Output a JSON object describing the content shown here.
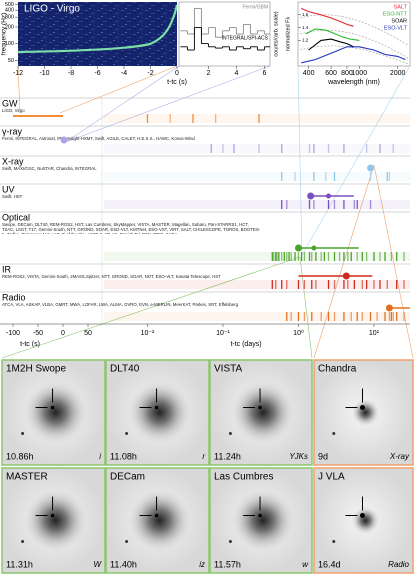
{
  "gw_panel": {
    "title": "LIGO - Virgo",
    "ylabel": "frequency (Hz)",
    "xlabel": "t-tc (s)",
    "xlim": [
      -12,
      0
    ],
    "xticks": [
      -12,
      -10,
      -8,
      -6,
      -4,
      -2,
      0
    ],
    "yscale": "log",
    "ylim": [
      40,
      560
    ],
    "yticks": [
      50,
      100,
      200,
      300,
      400,
      500
    ]
  },
  "gamma_panel": {
    "type": "line",
    "ylabel": "counts/(arb. scale)",
    "xlim": [
      -0.1,
      6.4
    ],
    "xticks": [
      2,
      4,
      6
    ],
    "ylim": [
      0,
      1
    ],
    "x": [
      0,
      0.5,
      1,
      1.5,
      2,
      2.5,
      3,
      3.5,
      4,
      4.5,
      5,
      5.5,
      6
    ],
    "series": [
      {
        "name": "Fermi/GBM",
        "color": "#8a8a8a",
        "values": [
          0.55,
          0.5,
          0.9,
          0.5,
          0.6,
          0.45,
          0.55,
          0.6,
          0.5,
          0.65,
          0.5,
          0.55,
          0.5
        ]
      },
      {
        "name": "INTEGRAL/SPI-ACS",
        "color": "#000000",
        "values": [
          0.3,
          0.25,
          0.6,
          0.35,
          0.3,
          0.28,
          0.3,
          0.25,
          0.3,
          0.27,
          0.3,
          0.25,
          0.3
        ]
      }
    ]
  },
  "spectra_panel": {
    "type": "line",
    "xlabel": "wavelength (nm)",
    "ylabel": "normalized Fλ",
    "xscale": "log",
    "xlim": [
      330,
      2500
    ],
    "xticks": [
      400,
      600,
      800,
      1000,
      2000
    ],
    "ylim": [
      0.8,
      1.8
    ],
    "yticks": [
      1.2,
      1.4,
      1.6
    ],
    "series": [
      {
        "name": "SALT",
        "color": "#e8262b",
        "x": [
          350,
          400,
          500,
          600,
          700,
          800,
          900
        ],
        "values": [
          1.7,
          1.65,
          1.6,
          1.55,
          1.5,
          1.45,
          1.42
        ]
      },
      {
        "name": "ESO-NTT",
        "color": "#2fb82f",
        "x": [
          380,
          450,
          550,
          650,
          750,
          850,
          1000
        ],
        "values": [
          1.3,
          1.38,
          1.36,
          1.3,
          1.25,
          1.22,
          1.2
        ]
      },
      {
        "name": "SOAR",
        "color": "#000000",
        "x": [
          400,
          500,
          600,
          700,
          800,
          900
        ],
        "values": [
          1.05,
          1.2,
          1.22,
          1.18,
          1.15,
          1.1
        ]
      },
      {
        "name": "ESO-VLT",
        "color": "#2233bb",
        "x": [
          350,
          450,
          600,
          800,
          1000,
          1300,
          1600,
          2000,
          2300
        ],
        "values": [
          0.85,
          0.9,
          1.0,
          1.1,
          1.1,
          1.05,
          0.98,
          0.95,
          0.9
        ]
      }
    ]
  },
  "timeline": {
    "xlabel_s": "t-tc (s)",
    "xlabel_d": "t-tc (days)",
    "slim": [
      -110,
      70
    ],
    "sticks": [
      -100,
      -50,
      0,
      50
    ],
    "dlim": [
      0.003,
      30
    ],
    "dticks": [
      {
        "value": 0.01,
        "label": "10⁻²"
      },
      {
        "value": 0.1,
        "label": "10⁻¹"
      },
      {
        "value": 1,
        "label": "10⁰"
      },
      {
        "value": 10,
        "label": "10¹"
      }
    ],
    "bands": [
      {
        "name": "GW",
        "instruments": "LIGO, Virgo",
        "color": "#f28c38",
        "range_s": [
          -100,
          0
        ],
        "events_d": [
          0.01,
          0.02,
          0.04,
          0.08,
          0.3
        ]
      },
      {
        "name": "γ-ray",
        "instruments": "Fermi, INTEGRAL, Astrosat, IPN, Insight-HXMT, Swift, AGILE, CALET, H.E.S.S., HAWC, Konus-Wind",
        "color": "#a9a4e6",
        "points_s": [
          2
        ],
        "events_d": [
          0.07,
          0.1,
          0.14,
          0.3,
          0.6,
          1.4,
          1.6,
          2.5,
          4,
          8,
          12,
          18
        ]
      },
      {
        "name": "X-ray",
        "instruments": "Swift, MAXI/GSC, NuSTAR, Chandra, INTEGRAL",
        "color": "#8ec8ea",
        "points_d": [
          9
        ],
        "events_d": [
          0.6,
          0.9,
          1.6,
          2.3,
          3,
          9,
          15,
          16
        ]
      },
      {
        "name": "UV",
        "instruments": "Swift, HST",
        "color": "#7a4fc4",
        "range_d": [
          1.45,
          5.4
        ],
        "points_d": [
          1.45,
          2.5
        ],
        "events_d": [
          0.6,
          0.7,
          1.4,
          1.6,
          2.5,
          3,
          4,
          5.5,
          6,
          9
        ]
      },
      {
        "name": "Optical",
        "instruments": "Swope, DECam, DLT40, REM-ROS2, HST, Las Cumbres, SkyMapper, VISTA, MASTER, Magellan, Subaru, Pan-STARRS1, HCT, TZAC, LSGT, T17, Gemini-South, NTT, GROND, SOAR, ESO-VLT, KMTNet, ESO-VST, VIRT, SALT, CHILESCOPE, TOROS, BOOTES-5, Zadko, iTelescope.Net, AAT, Pi of the Sky, AST3-2, ATLAS, Danish Tel, DFN, T80S, EABA",
        "color": "#4aa32a",
        "range_d": [
          0.95,
          6.3
        ],
        "points_d": [
          1.0,
          1.6
        ],
        "events_d": [
          0.45,
          0.47,
          0.5,
          0.52,
          0.55,
          0.6,
          0.65,
          0.7,
          0.75,
          0.8,
          0.9,
          1.0,
          1.1,
          1.2,
          1.4,
          1.5,
          1.7,
          2,
          2.2,
          2.5,
          3,
          3.5,
          4,
          4.5,
          5,
          6,
          7,
          8,
          10,
          12,
          14,
          17,
          20,
          25
        ]
      },
      {
        "name": "IR",
        "instruments": "REM-ROS2, VISTA, Gemini-South, 2MASS,Spitzer, NTT, GROND, SOAR, NOT, ESO-VLT, Kanata Telescope, HST",
        "color": "#d02a1e",
        "range_d": [
          1.0,
          9.5
        ],
        "points_d": [
          4.3
        ],
        "events_d": [
          0.45,
          0.5,
          0.6,
          0.7,
          1.0,
          1.2,
          1.5,
          1.7,
          2.5,
          3,
          4,
          4.5,
          5.5,
          7,
          8,
          10,
          12,
          15,
          20,
          25
        ]
      },
      {
        "name": "Radio",
        "instruments": "ATCA, VLA, ASKAP, VLBA, GMRT, MWA, LOFAR, LWA, ALMA, OVRO, EVN, e-MERLIN, MeerKAT, Parkes, SRT, Effelsberg",
        "color": "#e07020",
        "range_d": [
          16,
          30
        ],
        "points_d": [
          16
        ],
        "events_d": [
          0.7,
          0.8,
          1,
          1.2,
          1.5,
          2,
          2.5,
          3,
          4,
          5,
          6,
          7,
          9,
          11,
          14,
          16,
          17,
          18,
          20,
          25
        ]
      }
    ]
  },
  "images": [
    {
      "name": "1M2H Swope",
      "time": "10.86h",
      "filter": "i",
      "border": "#8cc56e"
    },
    {
      "name": "DLT40",
      "time": "11.08h",
      "filter": "r",
      "border": "#8cc56e"
    },
    {
      "name": "VISTA",
      "time": "11.24h",
      "filter": "YJKs",
      "border": "#8cc56e"
    },
    {
      "name": "Chandra",
      "time": "9d",
      "filter": "X-ray",
      "border": "#f0a070"
    },
    {
      "name": "MASTER",
      "time": "11.31h",
      "filter": "W",
      "border": "#8cc56e"
    },
    {
      "name": "DECam",
      "time": "11.40h",
      "filter": "iz",
      "border": "#8cc56e"
    },
    {
      "name": "Las Cumbres",
      "time": "11.57h",
      "filter": "w",
      "border": "#8cc56e"
    },
    {
      "name": "J VLA",
      "time": "16.4d",
      "filter": "Radio",
      "border": "#f0a070"
    }
  ]
}
